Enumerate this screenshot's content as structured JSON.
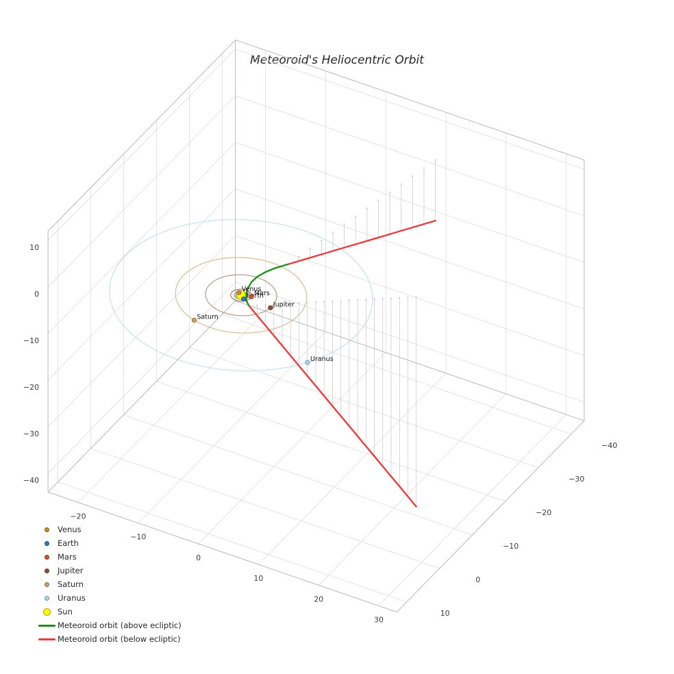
{
  "chart_data": {
    "type": "line",
    "title": "Meteoroid's Heliocentric Orbit",
    "projection": "3d",
    "axes": {
      "grid": true,
      "x": {
        "range": [
          -25,
          33
        ],
        "ticks": [
          {
            "v": -20,
            "label": "−20"
          },
          {
            "v": -10,
            "label": "−10"
          },
          {
            "v": 0,
            "label": "0"
          },
          {
            "v": 10,
            "label": "10"
          },
          {
            "v": 20,
            "label": "20"
          },
          {
            "v": 30,
            "label": "30"
          }
        ]
      },
      "y": {
        "range": [
          -44,
          13
        ],
        "ticks": [
          {
            "v": -40,
            "label": "−40"
          },
          {
            "v": -30,
            "label": "−30"
          },
          {
            "v": -20,
            "label": "−20"
          },
          {
            "v": -10,
            "label": "−10"
          },
          {
            "v": 0,
            "label": "0"
          },
          {
            "v": 10,
            "label": "10"
          }
        ]
      },
      "z": {
        "range": [
          -44,
          12
        ],
        "ticks": [
          {
            "v": 10,
            "label": "10"
          },
          {
            "v": 0,
            "label": "0"
          },
          {
            "v": -10,
            "label": "−10"
          },
          {
            "v": -20,
            "label": "−20"
          },
          {
            "v": -30,
            "label": "−30"
          },
          {
            "v": -40,
            "label": "−40"
          }
        ]
      }
    },
    "bodies": {
      "sun": {
        "name": "Sun",
        "color": "#ffff00",
        "edge_color": "#b9a400",
        "position": [
          0,
          0,
          0
        ]
      },
      "planets": [
        {
          "name": "Venus",
          "orbit_radius_au": 0.72,
          "angle_deg": 215,
          "marker_color": "#cf8a2d",
          "edge_color": "#8a5a16",
          "orbit_color": "#cf8a2d"
        },
        {
          "name": "Earth",
          "orbit_radius_au": 1.0,
          "angle_deg": 40,
          "marker_color": "#2e7bbf",
          "edge_color": "#1a4f85",
          "orbit_color": "#4a90c4"
        },
        {
          "name": "Mars",
          "orbit_radius_au": 1.52,
          "angle_deg": -17,
          "marker_color": "#d0512b",
          "edge_color": "#8f3015",
          "orbit_color": "#9e5440"
        },
        {
          "name": "Jupiter",
          "orbit_radius_au": 5.2,
          "angle_deg": 6,
          "marker_color": "#8a5138",
          "edge_color": "#5c3320",
          "orbit_color": "#a5825f"
        },
        {
          "name": "Saturn",
          "orbit_radius_au": 9.58,
          "angle_deg": 107,
          "marker_color": "#c99f63",
          "edge_color": "#8f6d3a",
          "orbit_color": "#ccab7d"
        },
        {
          "name": "Uranus",
          "orbit_radius_au": 19.2,
          "angle_deg": 31,
          "marker_color": "#a9d4e8",
          "edge_color": "#6699b5",
          "orbit_color": "#b9dae7"
        }
      ]
    },
    "meteoroid": {
      "above_label": "Meteoroid orbit (above ecliptic)",
      "below_label": "Meteoroid orbit (below ecliptic)",
      "above_color": "#1f8f1f",
      "below_color": "#ea3c3c",
      "stem_color": "#c6c6c6",
      "trajectory": [
        [
          7.7,
          -45.0,
          -13.0
        ],
        [
          7.26,
          -42.34,
          -12.0
        ],
        [
          6.82,
          -39.68,
          -11.0
        ],
        [
          6.39,
          -37.02,
          -10.0
        ],
        [
          5.95,
          -34.35,
          -9.0
        ],
        [
          5.51,
          -31.69,
          -8.0
        ],
        [
          5.07,
          -29.03,
          -7.0
        ],
        [
          4.63,
          -26.37,
          -6.0
        ],
        [
          4.19,
          -23.71,
          -5.0
        ],
        [
          3.76,
          -21.05,
          -4.0
        ],
        [
          3.32,
          -18.38,
          -3.0
        ],
        [
          2.88,
          -15.72,
          -2.0
        ],
        [
          2.44,
          -13.06,
          -1.0
        ],
        [
          2.0,
          -10.4,
          0.0
        ],
        [
          1.55,
          -7.6,
          1.05
        ],
        [
          1.2,
          -5.2,
          1.75
        ],
        [
          0.95,
          -3.2,
          2.1
        ],
        [
          0.85,
          -1.6,
          2.05
        ],
        [
          0.95,
          -0.2,
          1.65
        ],
        [
          1.3,
          0.9,
          1.05
        ],
        [
          1.75,
          1.5,
          0.5
        ],
        [
          2.2,
          1.7,
          0.0
        ],
        [
          3.19,
          0.97,
          -2.25
        ],
        [
          4.18,
          0.23,
          -4.5
        ],
        [
          5.17,
          -0.51,
          -6.75
        ],
        [
          6.16,
          -1.24,
          -9.0
        ],
        [
          7.15,
          -1.98,
          -11.25
        ],
        [
          8.14,
          -2.72,
          -13.5
        ],
        [
          9.13,
          -3.45,
          -15.75
        ],
        [
          10.12,
          -4.19,
          -18.0
        ],
        [
          11.11,
          -4.93,
          -20.25
        ],
        [
          12.1,
          -5.66,
          -22.5
        ],
        [
          13.09,
          -6.4,
          -24.75
        ],
        [
          14.08,
          -7.14,
          -27.0
        ],
        [
          15.07,
          -7.87,
          -29.25
        ],
        [
          16.06,
          -8.61,
          -31.5
        ],
        [
          17.05,
          -9.35,
          -33.75
        ],
        [
          18.04,
          -10.08,
          -36.0
        ],
        [
          19.03,
          -10.82,
          -38.25
        ],
        [
          20.02,
          -11.56,
          -40.5
        ],
        [
          21.01,
          -12.29,
          -42.75
        ],
        [
          22.0,
          -13.03,
          -45.0
        ]
      ]
    },
    "legend_note": "legend entries are built from bodies.planets, bodies.sun and meteoroid labels"
  }
}
